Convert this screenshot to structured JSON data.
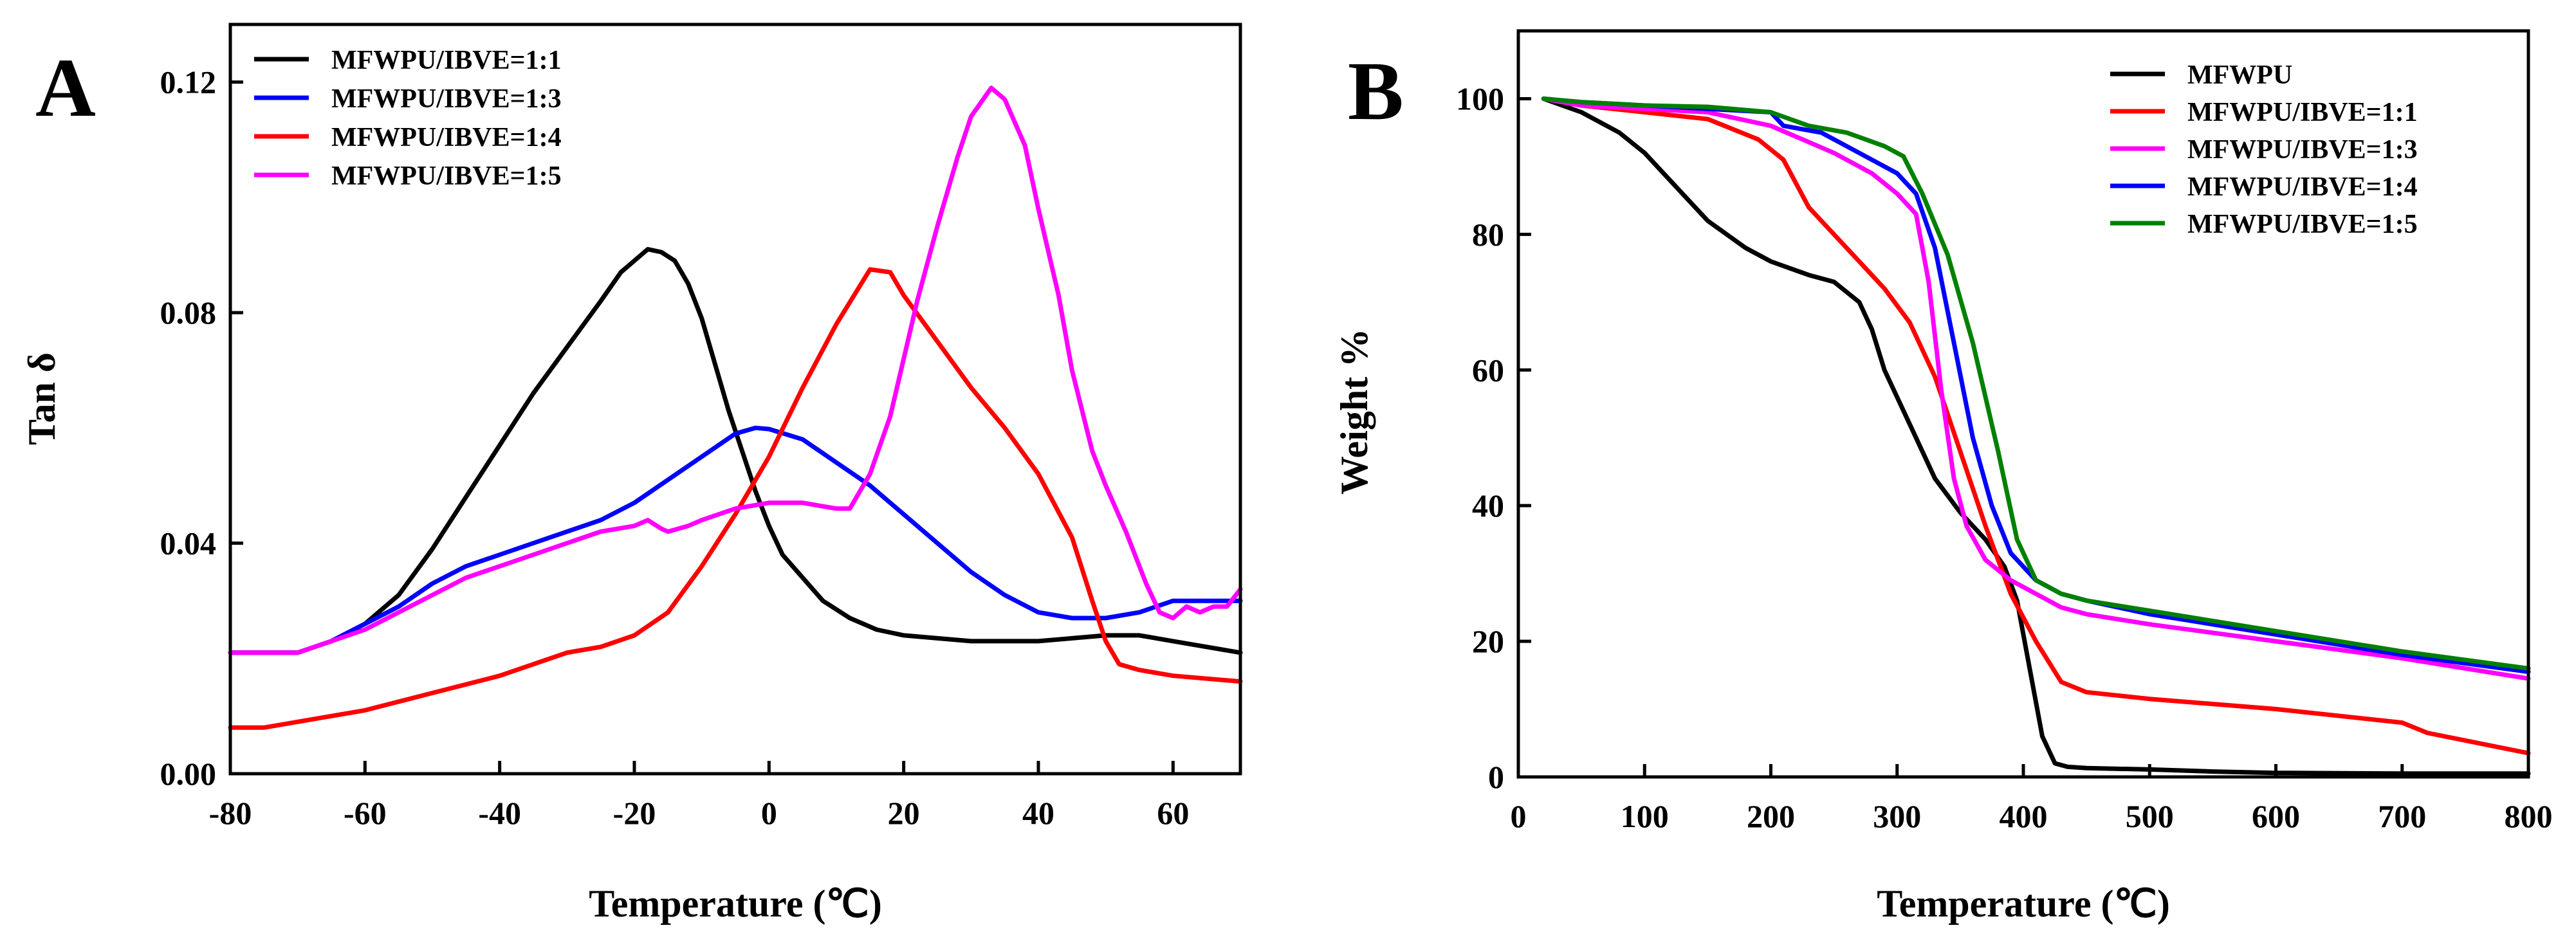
{
  "chart_data": [
    {
      "panel_label": "A",
      "type": "line",
      "xlabel": "Temperature (℃)",
      "ylabel": "Tan δ",
      "xlim": [
        -80,
        70
      ],
      "ylim": [
        0,
        0.13
      ],
      "xticks": [
        -80,
        -60,
        -40,
        -20,
        0,
        20,
        40,
        60
      ],
      "yticks": [
        0.0,
        0.04,
        0.08,
        0.12
      ],
      "xtick_labels": [
        "-80",
        "-60",
        "-40",
        "-20",
        "0",
        "20",
        "40",
        "60"
      ],
      "ytick_labels": [
        "0.00",
        "0.04",
        "0.08",
        "0.12"
      ],
      "legend_position": "top-left",
      "series": [
        {
          "name": "MFWPU/IBVE=1:1",
          "color": "#000000",
          "points": [
            [
              -80,
              0.021
            ],
            [
              -70,
              0.021
            ],
            [
              -65,
              0.023
            ],
            [
              -60,
              0.026
            ],
            [
              -55,
              0.031
            ],
            [
              -50,
              0.039
            ],
            [
              -45,
              0.048
            ],
            [
              -40,
              0.057
            ],
            [
              -35,
              0.066
            ],
            [
              -30,
              0.074
            ],
            [
              -25,
              0.082
            ],
            [
              -22,
              0.087
            ],
            [
              -20,
              0.089
            ],
            [
              -18,
              0.091
            ],
            [
              -16,
              0.0905
            ],
            [
              -14,
              0.089
            ],
            [
              -12,
              0.085
            ],
            [
              -10,
              0.079
            ],
            [
              -8,
              0.071
            ],
            [
              -6,
              0.063
            ],
            [
              -4,
              0.056
            ],
            [
              -2,
              0.049
            ],
            [
              0,
              0.043
            ],
            [
              2,
              0.038
            ],
            [
              5,
              0.034
            ],
            [
              8,
              0.03
            ],
            [
              12,
              0.027
            ],
            [
              16,
              0.025
            ],
            [
              20,
              0.024
            ],
            [
              30,
              0.023
            ],
            [
              40,
              0.023
            ],
            [
              45,
              0.0235
            ],
            [
              50,
              0.024
            ],
            [
              55,
              0.024
            ],
            [
              60,
              0.023
            ],
            [
              70,
              0.021
            ]
          ]
        },
        {
          "name": "MFWPU/IBVE=1:3",
          "color": "#0000ff",
          "points": [
            [
              -80,
              0.021
            ],
            [
              -70,
              0.021
            ],
            [
              -65,
              0.023
            ],
            [
              -60,
              0.026
            ],
            [
              -55,
              0.029
            ],
            [
              -50,
              0.033
            ],
            [
              -45,
              0.036
            ],
            [
              -40,
              0.038
            ],
            [
              -35,
              0.04
            ],
            [
              -30,
              0.042
            ],
            [
              -25,
              0.044
            ],
            [
              -20,
              0.047
            ],
            [
              -15,
              0.051
            ],
            [
              -10,
              0.055
            ],
            [
              -5,
              0.059
            ],
            [
              -2,
              0.06
            ],
            [
              0,
              0.0598
            ],
            [
              5,
              0.058
            ],
            [
              10,
              0.054
            ],
            [
              15,
              0.05
            ],
            [
              20,
              0.045
            ],
            [
              25,
              0.04
            ],
            [
              30,
              0.035
            ],
            [
              35,
              0.031
            ],
            [
              40,
              0.028
            ],
            [
              45,
              0.027
            ],
            [
              50,
              0.027
            ],
            [
              55,
              0.028
            ],
            [
              60,
              0.03
            ],
            [
              65,
              0.03
            ],
            [
              70,
              0.03
            ]
          ]
        },
        {
          "name": "MFWPU/IBVE=1:4",
          "color": "#ff0000",
          "points": [
            [
              -80,
              0.008
            ],
            [
              -75,
              0.008
            ],
            [
              -70,
              0.009
            ],
            [
              -60,
              0.011
            ],
            [
              -50,
              0.014
            ],
            [
              -40,
              0.017
            ],
            [
              -30,
              0.021
            ],
            [
              -25,
              0.022
            ],
            [
              -20,
              0.024
            ],
            [
              -15,
              0.028
            ],
            [
              -10,
              0.036
            ],
            [
              -5,
              0.045
            ],
            [
              0,
              0.055
            ],
            [
              5,
              0.067
            ],
            [
              10,
              0.078
            ],
            [
              15,
              0.0875
            ],
            [
              18,
              0.087
            ],
            [
              20,
              0.083
            ],
            [
              25,
              0.075
            ],
            [
              30,
              0.067
            ],
            [
              35,
              0.06
            ],
            [
              40,
              0.052
            ],
            [
              45,
              0.041
            ],
            [
              48,
              0.03
            ],
            [
              50,
              0.023
            ],
            [
              52,
              0.019
            ],
            [
              55,
              0.018
            ],
            [
              60,
              0.017
            ],
            [
              70,
              0.016
            ]
          ]
        },
        {
          "name": "MFWPU/IBVE=1:5",
          "color": "#ff00ff",
          "points": [
            [
              -80,
              0.021
            ],
            [
              -70,
              0.021
            ],
            [
              -65,
              0.023
            ],
            [
              -60,
              0.025
            ],
            [
              -55,
              0.028
            ],
            [
              -50,
              0.031
            ],
            [
              -45,
              0.034
            ],
            [
              -40,
              0.036
            ],
            [
              -35,
              0.038
            ],
            [
              -30,
              0.04
            ],
            [
              -25,
              0.042
            ],
            [
              -20,
              0.043
            ],
            [
              -18,
              0.044
            ],
            [
              -16,
              0.0425
            ],
            [
              -15,
              0.042
            ],
            [
              -12,
              0.043
            ],
            [
              -10,
              0.044
            ],
            [
              -5,
              0.046
            ],
            [
              0,
              0.047
            ],
            [
              5,
              0.047
            ],
            [
              10,
              0.046
            ],
            [
              12,
              0.046
            ],
            [
              15,
              0.052
            ],
            [
              18,
              0.062
            ],
            [
              20,
              0.072
            ],
            [
              22,
              0.082
            ],
            [
              25,
              0.095
            ],
            [
              28,
              0.107
            ],
            [
              30,
              0.114
            ],
            [
              33,
              0.119
            ],
            [
              35,
              0.117
            ],
            [
              38,
              0.109
            ],
            [
              40,
              0.098
            ],
            [
              43,
              0.083
            ],
            [
              45,
              0.07
            ],
            [
              48,
              0.056
            ],
            [
              50,
              0.05
            ],
            [
              53,
              0.042
            ],
            [
              56,
              0.033
            ],
            [
              58,
              0.028
            ],
            [
              60,
              0.027
            ],
            [
              62,
              0.029
            ],
            [
              64,
              0.028
            ],
            [
              66,
              0.029
            ],
            [
              68,
              0.029
            ],
            [
              70,
              0.032
            ]
          ]
        }
      ]
    },
    {
      "panel_label": "B",
      "type": "line",
      "xlabel": "Temperature (℃)",
      "ylabel": "Weight %",
      "xlim": [
        0,
        800
      ],
      "ylim": [
        0,
        110
      ],
      "xticks": [
        0,
        100,
        200,
        300,
        400,
        500,
        600,
        700,
        800
      ],
      "yticks": [
        0,
        20,
        40,
        60,
        80,
        100
      ],
      "xtick_labels": [
        "0",
        "100",
        "200",
        "300",
        "400",
        "500",
        "600",
        "700",
        "800"
      ],
      "ytick_labels": [
        "0",
        "20",
        "40",
        "60",
        "80",
        "100"
      ],
      "legend_position": "top-right",
      "series": [
        {
          "name": "MFWPU",
          "color": "#000000",
          "points": [
            [
              20,
              100
            ],
            [
              50,
              98
            ],
            [
              80,
              95
            ],
            [
              100,
              92
            ],
            [
              130,
              86
            ],
            [
              150,
              82
            ],
            [
              180,
              78
            ],
            [
              200,
              76
            ],
            [
              230,
              74
            ],
            [
              250,
              73
            ],
            [
              270,
              70
            ],
            [
              280,
              66
            ],
            [
              290,
              60
            ],
            [
              310,
              52
            ],
            [
              330,
              44
            ],
            [
              350,
              39
            ],
            [
              370,
              35
            ],
            [
              385,
              31
            ],
            [
              395,
              26
            ],
            [
              405,
              16
            ],
            [
              415,
              6
            ],
            [
              425,
              2
            ],
            [
              435,
              1.5
            ],
            [
              450,
              1.3
            ],
            [
              500,
              1.1
            ],
            [
              550,
              0.8
            ],
            [
              600,
              0.6
            ],
            [
              700,
              0.5
            ],
            [
              800,
              0.5
            ]
          ]
        },
        {
          "name": "MFWPU/IBVE=1:1",
          "color": "#ff0000",
          "points": [
            [
              20,
              100
            ],
            [
              50,
              99
            ],
            [
              100,
              98
            ],
            [
              150,
              97
            ],
            [
              190,
              94
            ],
            [
              210,
              91
            ],
            [
              230,
              84
            ],
            [
              250,
              80
            ],
            [
              270,
              76
            ],
            [
              290,
              72
            ],
            [
              310,
              67
            ],
            [
              330,
              59
            ],
            [
              350,
              48
            ],
            [
              370,
              37
            ],
            [
              390,
              27
            ],
            [
              410,
              20
            ],
            [
              430,
              14
            ],
            [
              450,
              12.5
            ],
            [
              500,
              11.5
            ],
            [
              600,
              10
            ],
            [
              700,
              8
            ],
            [
              720,
              6.5
            ],
            [
              760,
              5
            ],
            [
              800,
              3.5
            ]
          ]
        },
        {
          "name": "MFWPU/IBVE=1:3",
          "color": "#ff00ff",
          "points": [
            [
              20,
              100
            ],
            [
              50,
              99
            ],
            [
              100,
              98.5
            ],
            [
              150,
              98
            ],
            [
              200,
              96
            ],
            [
              250,
              92
            ],
            [
              280,
              89
            ],
            [
              300,
              86
            ],
            [
              315,
              83
            ],
            [
              325,
              73
            ],
            [
              335,
              57
            ],
            [
              345,
              44
            ],
            [
              355,
              37
            ],
            [
              370,
              32
            ],
            [
              390,
              29
            ],
            [
              410,
              27
            ],
            [
              430,
              25
            ],
            [
              450,
              24
            ],
            [
              500,
              22.5
            ],
            [
              600,
              20
            ],
            [
              700,
              17.5
            ],
            [
              800,
              14.5
            ]
          ]
        },
        {
          "name": "MFWPU/IBVE=1:4",
          "color": "#0000ff",
          "points": [
            [
              20,
              100
            ],
            [
              50,
              99.5
            ],
            [
              100,
              99
            ],
            [
              150,
              98.5
            ],
            [
              200,
              98
            ],
            [
              210,
              96
            ],
            [
              240,
              95
            ],
            [
              270,
              92
            ],
            [
              300,
              89
            ],
            [
              315,
              86
            ],
            [
              330,
              78
            ],
            [
              345,
              64
            ],
            [
              360,
              50
            ],
            [
              375,
              40
            ],
            [
              390,
              33
            ],
            [
              410,
              29
            ],
            [
              430,
              27
            ],
            [
              450,
              26
            ],
            [
              500,
              24
            ],
            [
              600,
              21
            ],
            [
              700,
              18
            ],
            [
              800,
              15.5
            ]
          ]
        },
        {
          "name": "MFWPU/IBVE=1:5",
          "color": "#008000",
          "points": [
            [
              20,
              100
            ],
            [
              50,
              99.5
            ],
            [
              100,
              99
            ],
            [
              150,
              98.8
            ],
            [
              200,
              98
            ],
            [
              230,
              96
            ],
            [
              260,
              95
            ],
            [
              290,
              93
            ],
            [
              305,
              91.5
            ],
            [
              320,
              86
            ],
            [
              340,
              77
            ],
            [
              360,
              64
            ],
            [
              380,
              48
            ],
            [
              395,
              35
            ],
            [
              410,
              29
            ],
            [
              430,
              27
            ],
            [
              450,
              26
            ],
            [
              500,
              24.5
            ],
            [
              600,
              21.5
            ],
            [
              700,
              18.5
            ],
            [
              800,
              16
            ]
          ]
        }
      ]
    }
  ]
}
